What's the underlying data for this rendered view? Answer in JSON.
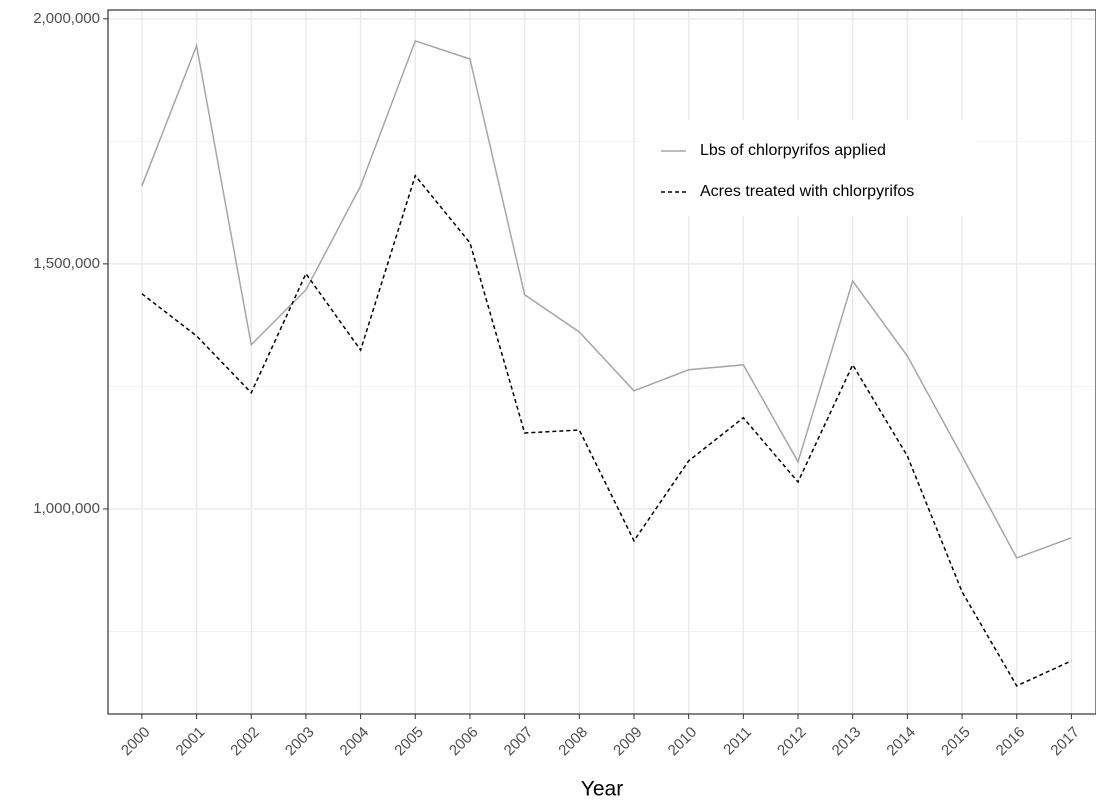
{
  "chart_data": {
    "type": "line",
    "x_label": "Year",
    "x": [
      2000,
      2001,
      2002,
      2003,
      2004,
      2005,
      2006,
      2007,
      2008,
      2009,
      2010,
      2011,
      2012,
      2013,
      2014,
      2015,
      2016,
      2017
    ],
    "series": [
      {
        "name": "Lbs of chlorpyrifos applied",
        "color": "#a6a6a6",
        "linetype": "solid",
        "values": [
          1659000,
          1945000,
          1335000,
          1447000,
          1659000,
          1955000,
          1918000,
          1437000,
          1361000,
          1241000,
          1284000,
          1294000,
          1096000,
          1465000,
          1312000,
          1108000,
          900000,
          941000
        ]
      },
      {
        "name": "Acres treated with chlorpyrifos",
        "color": "#000000",
        "linetype": "dashed",
        "values": [
          1439000,
          1353000,
          1237000,
          1480000,
          1324000,
          1680000,
          1543000,
          1155000,
          1161000,
          935000,
          1098000,
          1186000,
          1055000,
          1294000,
          1108000,
          831000,
          639000,
          690000
        ]
      }
    ],
    "xlim": [
      1999.38,
      2017.45
    ],
    "xticks": [
      2000,
      2001,
      2002,
      2003,
      2004,
      2005,
      2006,
      2007,
      2008,
      2009,
      2010,
      2011,
      2012,
      2013,
      2014,
      2015,
      2016,
      2017
    ],
    "ylim": [
      581600,
      2018000
    ],
    "yticks": [
      {
        "value": 1000000,
        "label": "1,000,000"
      },
      {
        "value": 1500000,
        "label": "1,500,000"
      },
      {
        "value": 2000000,
        "label": "2,000,000"
      }
    ],
    "minor_yticks": [
      750000,
      1250000,
      1750000
    ],
    "grid": true,
    "legend": "top-right"
  }
}
